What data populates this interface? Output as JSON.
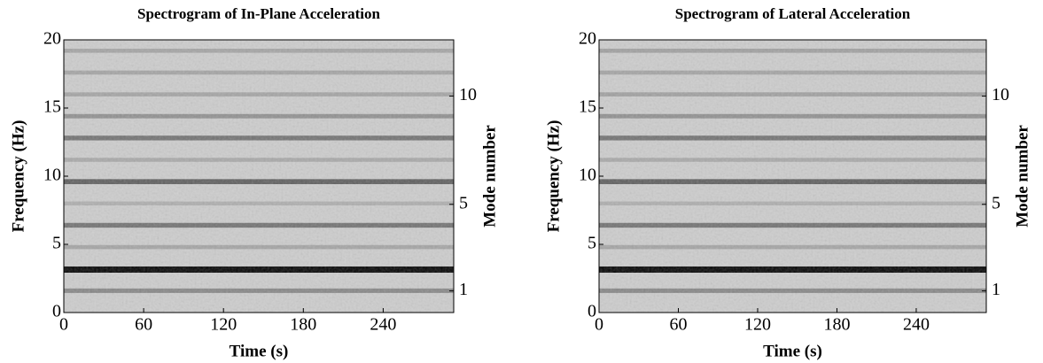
{
  "chart_data": [
    {
      "type": "spectrogram",
      "title": "Spectrogram of In-Plane Acceleration",
      "xlabel": "Time (s)",
      "ylabel": "Frequency (Hz)",
      "y2label": "Mode number",
      "xlim": [
        0,
        293
      ],
      "xticks": [
        0,
        60,
        120,
        180,
        240
      ],
      "ylim": [
        0,
        20
      ],
      "yticks": [
        0,
        5,
        10,
        15,
        20
      ],
      "y2lim": [
        0,
        12.6
      ],
      "y2ticks": [
        1,
        5,
        10
      ],
      "background": "#cdcdcd",
      "cmap": [
        "#cdcdcd",
        "#050505"
      ],
      "bands": {
        "frequency": [
          1.6,
          3.15,
          4.8,
          6.4,
          8.0,
          9.6,
          11.2,
          12.8,
          14.4,
          16.0,
          17.6,
          19.2
        ],
        "intensity": [
          0.35,
          1.0,
          0.2,
          0.45,
          0.15,
          0.55,
          0.18,
          0.45,
          0.3,
          0.2,
          0.2,
          0.2
        ]
      }
    },
    {
      "type": "spectrogram",
      "title": "Spectrogram of Lateral Acceleration",
      "xlabel": "Time (s)",
      "ylabel": "Frequency (Hz)",
      "y2label": "Mode number",
      "xlim": [
        0,
        293
      ],
      "xticks": [
        0,
        60,
        120,
        180,
        240
      ],
      "ylim": [
        0,
        20
      ],
      "yticks": [
        0,
        5,
        10,
        15,
        20
      ],
      "y2lim": [
        0,
        12.6
      ],
      "y2ticks": [
        1,
        5,
        10
      ],
      "background": "#cdcdcd",
      "cmap": [
        "#cdcdcd",
        "#050505"
      ],
      "bands": {
        "frequency": [
          1.6,
          3.15,
          4.8,
          6.4,
          8.0,
          9.6,
          11.2,
          12.8,
          14.4,
          16.0,
          17.6,
          19.2
        ],
        "intensity": [
          0.35,
          1.0,
          0.2,
          0.45,
          0.15,
          0.55,
          0.18,
          0.45,
          0.3,
          0.22,
          0.2,
          0.22
        ]
      }
    }
  ]
}
